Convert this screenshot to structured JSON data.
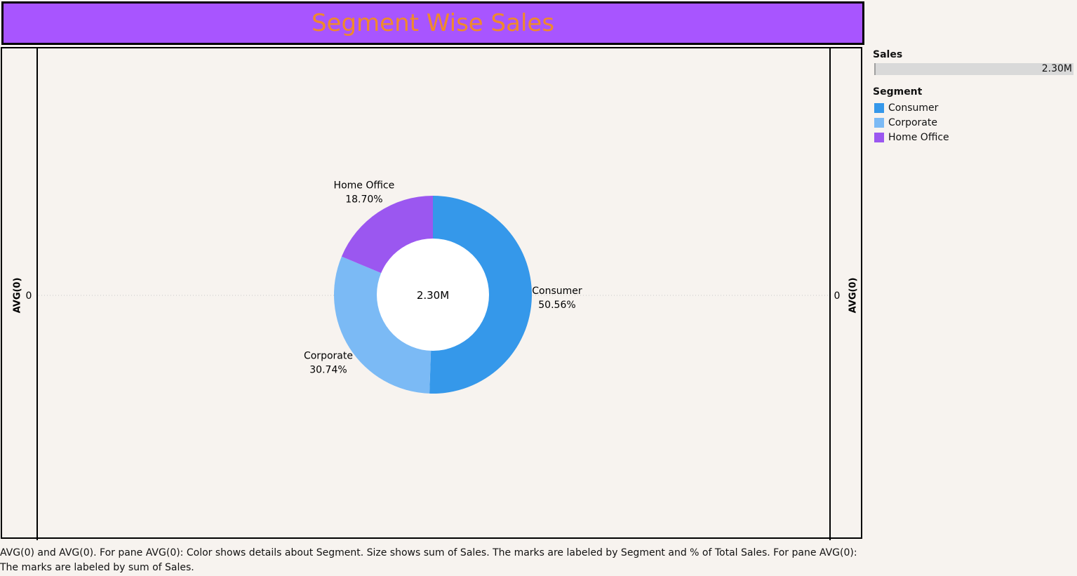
{
  "title": "Segment Wise Sales",
  "chart_data": {
    "type": "pie",
    "variant": "donut",
    "title": "Segment Wise Sales",
    "center_label": "2.30M",
    "total_sales": 2300000,
    "categories": [
      "Consumer",
      "Corporate",
      "Home Office"
    ],
    "percent_values": [
      50.56,
      30.74,
      18.7
    ],
    "labels": [
      "50.56%",
      "30.74%",
      "18.70%"
    ],
    "colors": [
      "#3598ea",
      "#7bbaf5",
      "#9b57f0"
    ],
    "left_axis": {
      "title": "AVG(0)",
      "tick": "0"
    },
    "right_axis": {
      "title": "AVG(0)",
      "tick": "0"
    },
    "grid": "dotted zero line"
  },
  "legend": {
    "size_title": "Sales",
    "size_value": "2.30M",
    "color_title": "Segment",
    "items": [
      {
        "label": "Consumer",
        "color": "#3598ea"
      },
      {
        "label": "Corporate",
        "color": "#7bbaf5"
      },
      {
        "label": "Home Office",
        "color": "#9b57f0"
      }
    ]
  },
  "caption": "AVG(0) and AVG(0).  For pane AVG(0):  Color shows details about Segment.  Size shows sum of Sales.  The marks are labeled by Segment and % of Total Sales.  For pane AVG(0):  The marks are labeled by sum of Sales."
}
